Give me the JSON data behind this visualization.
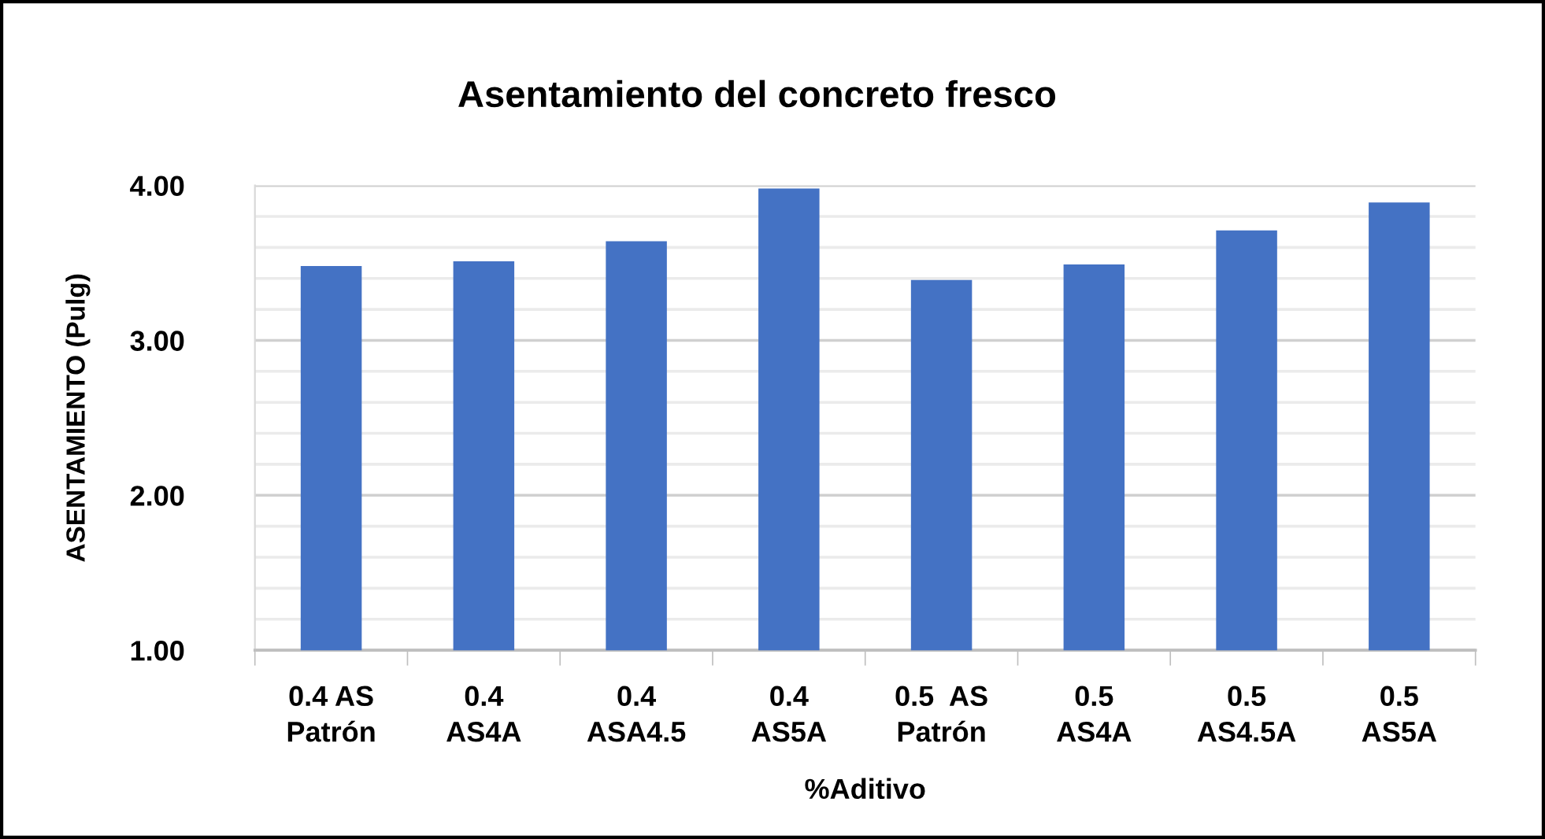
{
  "chart_data": {
    "type": "bar",
    "title": "Asentamiento del concreto fresco",
    "xlabel": "%Aditivo",
    "ylabel": "ASENTAMIENTO (Pulg)",
    "categories": [
      "0.4 AS\nPatrón",
      "0.4\nAS4A",
      "0.4\nASA4.5",
      "0.4\nAS5A",
      "0.5  AS\nPatrón",
      "0.5\nAS4A",
      "0.5\nAS4.5A",
      "0.5\nAS5A"
    ],
    "values": [
      3.48,
      3.51,
      3.64,
      3.98,
      3.39,
      3.49,
      3.71,
      3.89
    ],
    "color": "#4472c4",
    "ylim": [
      1,
      4
    ],
    "yticks": [
      {
        "value": 1,
        "label": "1.00"
      },
      {
        "value": 1.2,
        "label": null
      },
      {
        "value": 1.4,
        "label": null
      },
      {
        "value": 1.6,
        "label": null
      },
      {
        "value": 1.8,
        "label": null
      },
      {
        "value": 2,
        "label": "2.00"
      },
      {
        "value": 2.2,
        "label": null
      },
      {
        "value": 2.4,
        "label": null
      },
      {
        "value": 2.6,
        "label": null
      },
      {
        "value": 2.8,
        "label": null
      },
      {
        "value": 3,
        "label": "3.00"
      },
      {
        "value": 3.2,
        "label": null
      },
      {
        "value": 3.4,
        "label": null
      },
      {
        "value": 3.6,
        "label": null
      },
      {
        "value": 3.8,
        "label": null
      },
      {
        "value": 4,
        "label": "4.00"
      }
    ],
    "grid": "y"
  }
}
